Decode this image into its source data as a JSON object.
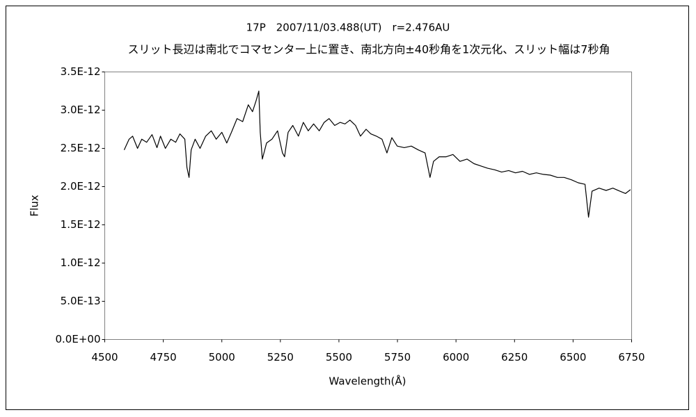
{
  "chart_data": {
    "type": "line",
    "title": "17P　2007/11/03.488(UT)　r=2.476AU",
    "subtitle": "スリット長辺は南北でコマセンター上に置き、南北方向±40秒角を1次元化、スリット幅は7秒角",
    "x_label": "Wavelength(Å)",
    "y_label": "Flux",
    "color": "#000000",
    "grid": false,
    "xlim": [
      4500,
      6750
    ],
    "xticks": [
      4500,
      4750,
      5000,
      5250,
      5500,
      5750,
      6000,
      6250,
      6500,
      6750
    ],
    "ylim": [
      0,
      3.5e-12
    ],
    "yticks": [
      {
        "value": 0,
        "label": "0.0E+00"
      },
      {
        "value": 5e-13,
        "label": "5.0E-13"
      },
      {
        "value": 1e-12,
        "label": "1.0E-12"
      },
      {
        "value": 1.5e-12,
        "label": "1.5E-12"
      },
      {
        "value": 2e-12,
        "label": "2.0E-12"
      },
      {
        "value": 2.5e-12,
        "label": "2.5E-12"
      },
      {
        "value": 3e-12,
        "label": "3.0E-12"
      },
      {
        "value": 3.5e-12,
        "label": "3.5E-12"
      }
    ],
    "x": [
      4583,
      4604,
      4619,
      4640,
      4658,
      4679,
      4702,
      4723,
      4738,
      4759,
      4782,
      4803,
      4821,
      4842,
      4851,
      4860,
      4869,
      4886,
      4907,
      4931,
      4955,
      4976,
      5000,
      5021,
      5041,
      5065,
      5089,
      5113,
      5131,
      5146,
      5158,
      5164,
      5173,
      5191,
      5214,
      5238,
      5259,
      5268,
      5283,
      5303,
      5327,
      5348,
      5369,
      5392,
      5416,
      5437,
      5458,
      5482,
      5505,
      5526,
      5547,
      5571,
      5592,
      5616,
      5636,
      5660,
      5684,
      5705,
      5726,
      5749,
      5779,
      5809,
      5839,
      5868,
      5889,
      5904,
      5928,
      5958,
      5987,
      6017,
      6047,
      6077,
      6106,
      6135,
      6165,
      6195,
      6225,
      6254,
      6284,
      6314,
      6343,
      6373,
      6403,
      6433,
      6462,
      6492,
      6522,
      6551,
      6566,
      6581,
      6611,
      6641,
      6670,
      6700,
      6724,
      6745
    ],
    "values": [
      2.48e-12,
      2.62e-12,
      2.66e-12,
      2.5e-12,
      2.62e-12,
      2.58e-12,
      2.68e-12,
      2.51e-12,
      2.66e-12,
      2.5e-12,
      2.62e-12,
      2.58e-12,
      2.69e-12,
      2.62e-12,
      2.25e-12,
      2.12e-12,
      2.48e-12,
      2.62e-12,
      2.5e-12,
      2.66e-12,
      2.73e-12,
      2.62e-12,
      2.71e-12,
      2.57e-12,
      2.71e-12,
      2.89e-12,
      2.85e-12,
      3.07e-12,
      2.98e-12,
      3.12e-12,
      3.25e-12,
      2.71e-12,
      2.36e-12,
      2.57e-12,
      2.62e-12,
      2.73e-12,
      2.44e-12,
      2.39e-12,
      2.71e-12,
      2.8e-12,
      2.66e-12,
      2.84e-12,
      2.73e-12,
      2.82e-12,
      2.73e-12,
      2.84e-12,
      2.89e-12,
      2.8e-12,
      2.84e-12,
      2.82e-12,
      2.87e-12,
      2.8e-12,
      2.66e-12,
      2.75e-12,
      2.69e-12,
      2.66e-12,
      2.62e-12,
      2.44e-12,
      2.64e-12,
      2.53e-12,
      2.51e-12,
      2.53e-12,
      2.48e-12,
      2.44e-12,
      2.12e-12,
      2.33e-12,
      2.39e-12,
      2.39e-12,
      2.42e-12,
      2.33e-12,
      2.36e-12,
      2.3e-12,
      2.27e-12,
      2.24e-12,
      2.22e-12,
      2.19e-12,
      2.21e-12,
      2.18e-12,
      2.2e-12,
      2.16e-12,
      2.18e-12,
      2.16e-12,
      2.15e-12,
      2.12e-12,
      2.12e-12,
      2.09e-12,
      2.05e-12,
      2.03e-12,
      1.6e-12,
      1.94e-12,
      1.98e-12,
      1.95e-12,
      1.98e-12,
      1.94e-12,
      1.91e-12,
      1.96e-12
    ]
  }
}
